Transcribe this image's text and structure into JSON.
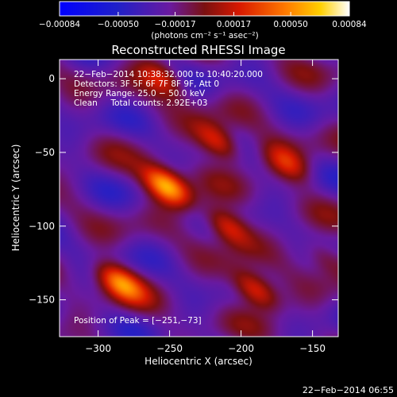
{
  "chart_data": {
    "type": "heatmap",
    "title": "Reconstructed RHESSI Image",
    "xlabel": "Heliocentric X (arcsec)",
    "ylabel": "Heliocentric Y (arcsec)",
    "xlim": [
      -327,
      -132
    ],
    "ylim": [
      -175,
      13
    ],
    "x_ticks": [
      -300,
      -250,
      -200,
      -150
    ],
    "y_ticks": [
      0,
      -50,
      -100,
      -150
    ],
    "x_tick_labels": [
      "−300",
      "−250",
      "−200",
      "−150"
    ],
    "y_tick_labels": [
      "0",
      "−50",
      "−100",
      "−150"
    ],
    "colorbar": {
      "range": [
        -0.00084,
        0.00084
      ],
      "ticks": [
        -0.00084,
        -0.0005,
        -0.00017,
        0.00017,
        0.0005,
        0.00084
      ],
      "tick_labels": [
        "−0.00084",
        "−0.00050",
        "−0.00017",
        "0.00017",
        "0.00050",
        "0.00084"
      ],
      "label": "(photons cm⁻² s⁻¹ asec⁻²)",
      "colormap": "blue-purple-red-orange-yellow-white"
    },
    "annotations": [
      "22−Feb−2014 10:38:32.000 to 10:40:20.000",
      "Detectors: 3F 5F 6F 7F 8F 9F, Att 0",
      "Energy Range: 25.0 − 50.0 keV",
      "Clean     Total counts: 2.92E+03"
    ],
    "peak_label": "Position of Peak = [−251,−73]",
    "peak": {
      "x": -251,
      "y": -73
    },
    "bright_sources": [
      {
        "x": -252,
        "y": -73,
        "intensity": 0.00084
      },
      {
        "x": -285,
        "y": -138,
        "intensity": 0.00065
      },
      {
        "x": -190,
        "y": -143,
        "intensity": 0.0006
      },
      {
        "x": -210,
        "y": -100,
        "intensity": 0.00055
      },
      {
        "x": -216,
        "y": -43,
        "intensity": 0.00055
      },
      {
        "x": -255,
        "y": 0,
        "intensity": 0.0004
      },
      {
        "x": -168,
        "y": -57,
        "intensity": 0.0004
      },
      {
        "x": -142,
        "y": -121,
        "intensity": 0.0003
      }
    ]
  },
  "footer": {
    "timestamp": "22−Feb−2014 06:55"
  },
  "colors": {
    "background": "#000000",
    "text": "#ffffff"
  }
}
